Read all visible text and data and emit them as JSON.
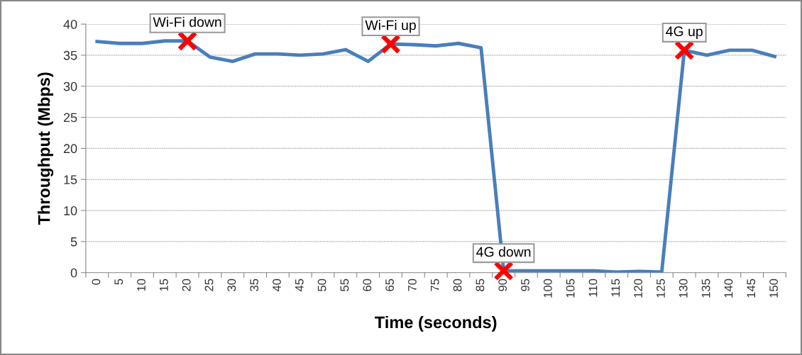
{
  "chart_data": {
    "type": "line",
    "xlabel": "Time (seconds)",
    "ylabel": "Throughput (Mbps)",
    "categories": [
      "0",
      "5",
      "10",
      "15",
      "20",
      "25",
      "30",
      "35",
      "40",
      "45",
      "50",
      "55",
      "60",
      "65",
      "70",
      "75",
      "80",
      "85",
      "90",
      "95",
      "100",
      "105",
      "110",
      "115",
      "120",
      "125",
      "130",
      "135",
      "140",
      "145",
      "150"
    ],
    "series": [
      {
        "color": "#4a7ebb",
        "values": [
          37.2,
          36.9,
          36.9,
          37.3,
          37.3,
          34.7,
          34.0,
          35.2,
          35.2,
          35.0,
          35.2,
          35.9,
          34.0,
          36.8,
          36.7,
          36.5,
          36.9,
          36.2,
          0.3,
          0.3,
          0.3,
          0.3,
          0.3,
          0.1,
          0.2,
          0.1,
          35.8,
          35.0,
          35.8,
          35.8,
          34.8
        ],
        "marker": "none",
        "line_style": "solid"
      },
      {
        "type": "scatter",
        "color": "#ff0000",
        "x": [
          "20",
          "65",
          "90",
          "130"
        ],
        "values": [
          37.3,
          36.8,
          0.3,
          35.8
        ],
        "marker": "cross"
      }
    ],
    "annotations": [
      {
        "text": "Wi-Fi down",
        "x": "20",
        "y": 37.3
      },
      {
        "text": "Wi-Fi up",
        "x": "65",
        "y": 36.8
      },
      {
        "text": "4G down",
        "x": "90",
        "y": 0.3
      },
      {
        "text": "4G up",
        "x": "130",
        "y": 35.8
      }
    ],
    "ylim": [
      0,
      40
    ],
    "yticks": [
      0,
      5,
      10,
      15,
      20,
      25,
      30,
      35,
      40
    ],
    "grid": "y",
    "legend": false
  }
}
